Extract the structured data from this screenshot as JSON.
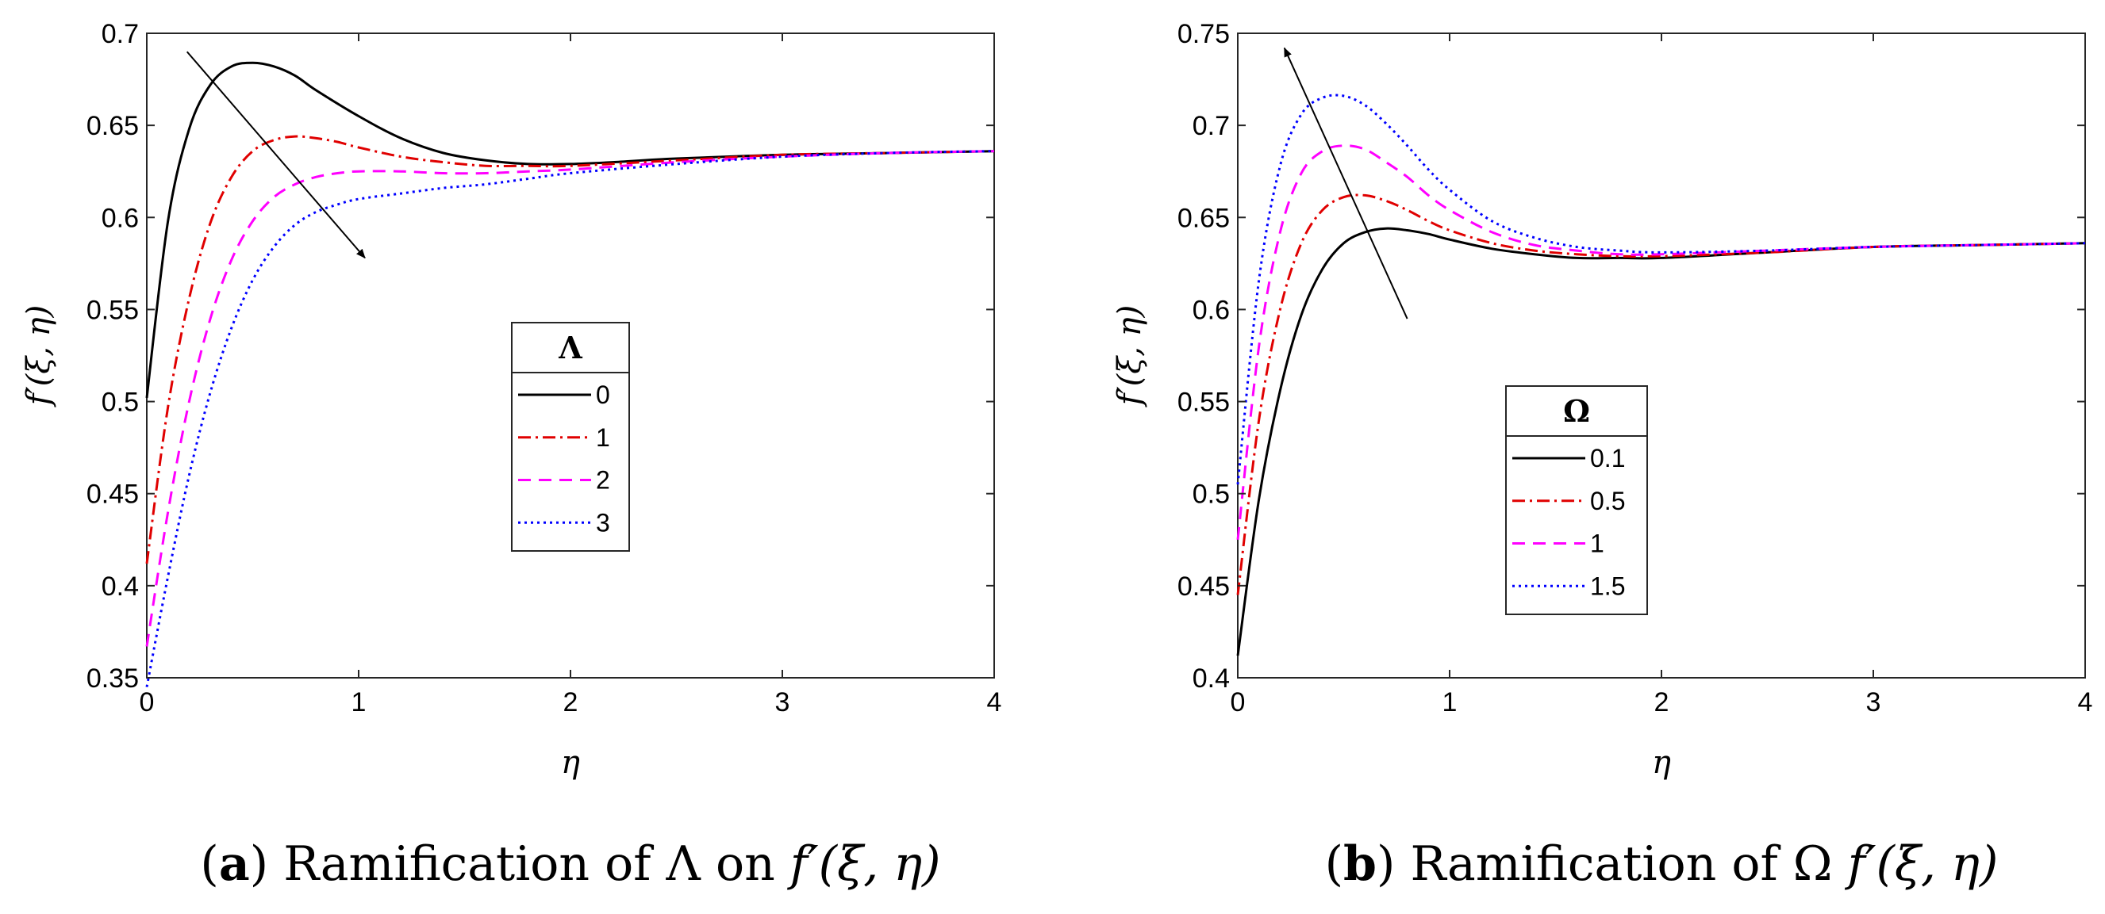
{
  "chart_data": [
    {
      "type": "line",
      "caption_letter": "a",
      "caption_text": "Ramification of Λ on ",
      "caption_math": "f′(ξ, η)",
      "xlabel": "η",
      "ylabel": "f′(ξ, η)",
      "xlim": [
        0,
        4
      ],
      "ylim": [
        0.35,
        0.7
      ],
      "xticks": [
        "0",
        "1",
        "2",
        "3",
        "4"
      ],
      "yticks": [
        "0.35",
        "0.4",
        "0.45",
        "0.5",
        "0.55",
        "0.6",
        "0.65",
        "0.7"
      ],
      "xtick_values": [
        0,
        1,
        2,
        3,
        4
      ],
      "ytick_values": [
        0.35,
        0.4,
        0.45,
        0.5,
        0.55,
        0.6,
        0.65,
        0.7
      ],
      "legend_title": "Λ",
      "legend_position": "center",
      "arrow": {
        "from": [
          0.19,
          0.69
        ],
        "to": [
          1.03,
          0.578
        ],
        "meaning": "increasing Λ"
      },
      "series": [
        {
          "name": "0",
          "color": "#000000",
          "style": "solid",
          "x": [
            0,
            0.1,
            0.2,
            0.3,
            0.4,
            0.5,
            0.6,
            0.7,
            0.8,
            1.0,
            1.2,
            1.4,
            1.6,
            1.8,
            2.0,
            2.2,
            2.5,
            3.0,
            3.5,
            4.0
          ],
          "y": [
            0.502,
            0.598,
            0.648,
            0.672,
            0.682,
            0.684,
            0.682,
            0.677,
            0.669,
            0.655,
            0.643,
            0.635,
            0.631,
            0.629,
            0.629,
            0.63,
            0.632,
            0.634,
            0.635,
            0.636
          ]
        },
        {
          "name": "1",
          "color": "#e00000",
          "style": "dashdot",
          "x": [
            0,
            0.1,
            0.2,
            0.3,
            0.4,
            0.5,
            0.6,
            0.7,
            0.8,
            0.9,
            1.0,
            1.2,
            1.4,
            1.6,
            1.8,
            2.0,
            2.5,
            3.0,
            3.5,
            4.0
          ],
          "y": [
            0.412,
            0.497,
            0.556,
            0.597,
            0.622,
            0.636,
            0.642,
            0.644,
            0.643,
            0.641,
            0.638,
            0.633,
            0.63,
            0.628,
            0.628,
            0.628,
            0.631,
            0.634,
            0.635,
            0.636
          ]
        },
        {
          "name": "2",
          "color": "#ff00ff",
          "style": "dashed",
          "x": [
            0,
            0.1,
            0.2,
            0.3,
            0.4,
            0.5,
            0.6,
            0.7,
            0.8,
            0.9,
            1.0,
            1.2,
            1.4,
            1.6,
            1.8,
            2.0,
            2.5,
            3.0,
            3.5,
            4.0
          ],
          "y": [
            0.367,
            0.44,
            0.5,
            0.545,
            0.577,
            0.598,
            0.611,
            0.618,
            0.622,
            0.624,
            0.625,
            0.625,
            0.624,
            0.624,
            0.625,
            0.626,
            0.63,
            0.633,
            0.635,
            0.636
          ]
        },
        {
          "name": "3",
          "color": "#0000ff",
          "style": "dotted",
          "x": [
            0,
            0.1,
            0.2,
            0.3,
            0.4,
            0.5,
            0.6,
            0.7,
            0.8,
            0.9,
            1.0,
            1.2,
            1.4,
            1.6,
            1.8,
            2.0,
            2.5,
            3.0,
            3.5,
            4.0
          ],
          "y": [
            0.345,
            0.405,
            0.46,
            0.505,
            0.54,
            0.566,
            0.584,
            0.596,
            0.603,
            0.607,
            0.61,
            0.613,
            0.616,
            0.618,
            0.621,
            0.624,
            0.629,
            0.633,
            0.635,
            0.636
          ]
        }
      ]
    },
    {
      "type": "line",
      "caption_letter": "b",
      "caption_text": "Ramification of Ω ",
      "caption_math": "f′(ξ, η)",
      "xlabel": "η",
      "ylabel": "f′(ξ, η)",
      "xlim": [
        0,
        4
      ],
      "ylim": [
        0.4,
        0.75
      ],
      "xticks": [
        "0",
        "1",
        "2",
        "3",
        "4"
      ],
      "yticks": [
        "0.4",
        "0.45",
        "0.5",
        "0.55",
        "0.6",
        "0.65",
        "0.7",
        "0.75"
      ],
      "xtick_values": [
        0,
        1,
        2,
        3,
        4
      ],
      "ytick_values": [
        0.4,
        0.45,
        0.5,
        0.55,
        0.6,
        0.65,
        0.7,
        0.75
      ],
      "legend_title": "Ω",
      "legend_position": "lower-left",
      "arrow": {
        "from": [
          0.8,
          0.595
        ],
        "to": [
          0.22,
          0.742
        ],
        "meaning": "increasing Ω"
      },
      "series": [
        {
          "name": "0.1",
          "color": "#000000",
          "style": "solid",
          "x": [
            0,
            0.1,
            0.2,
            0.3,
            0.4,
            0.5,
            0.6,
            0.7,
            0.8,
            0.9,
            1.0,
            1.2,
            1.4,
            1.6,
            1.8,
            2.0,
            2.5,
            3.0,
            3.5,
            4.0
          ],
          "y": [
            0.412,
            0.497,
            0.556,
            0.597,
            0.622,
            0.636,
            0.642,
            0.644,
            0.643,
            0.641,
            0.638,
            0.633,
            0.63,
            0.628,
            0.628,
            0.628,
            0.631,
            0.634,
            0.635,
            0.636
          ]
        },
        {
          "name": "0.5",
          "color": "#e00000",
          "style": "dashdot",
          "x": [
            0,
            0.1,
            0.2,
            0.3,
            0.4,
            0.5,
            0.6,
            0.7,
            0.8,
            0.9,
            1.0,
            1.2,
            1.4,
            1.6,
            1.8,
            2.0,
            2.5,
            3.0,
            3.5,
            4.0
          ],
          "y": [
            0.445,
            0.54,
            0.6,
            0.636,
            0.654,
            0.661,
            0.662,
            0.659,
            0.654,
            0.648,
            0.643,
            0.636,
            0.632,
            0.63,
            0.629,
            0.629,
            0.631,
            0.634,
            0.635,
            0.636
          ]
        },
        {
          "name": "1",
          "color": "#ff00ff",
          "style": "dashed",
          "x": [
            0,
            0.1,
            0.2,
            0.3,
            0.4,
            0.5,
            0.6,
            0.7,
            0.8,
            0.9,
            1.0,
            1.2,
            1.4,
            1.6,
            1.8,
            2.0,
            2.5,
            3.0,
            3.5,
            4.0
          ],
          "y": [
            0.475,
            0.58,
            0.642,
            0.674,
            0.686,
            0.689,
            0.687,
            0.68,
            0.672,
            0.662,
            0.654,
            0.642,
            0.635,
            0.632,
            0.63,
            0.63,
            0.632,
            0.634,
            0.635,
            0.636
          ]
        },
        {
          "name": "1.5",
          "color": "#0000ff",
          "style": "dotted",
          "x": [
            0,
            0.1,
            0.2,
            0.3,
            0.4,
            0.5,
            0.6,
            0.7,
            0.8,
            0.9,
            1.0,
            1.2,
            1.4,
            1.6,
            1.8,
            2.0,
            2.5,
            3.0,
            3.5,
            4.0
          ],
          "y": [
            0.505,
            0.616,
            0.678,
            0.706,
            0.715,
            0.716,
            0.711,
            0.701,
            0.689,
            0.676,
            0.665,
            0.648,
            0.639,
            0.634,
            0.632,
            0.631,
            0.632,
            0.634,
            0.635,
            0.636
          ]
        }
      ]
    }
  ]
}
